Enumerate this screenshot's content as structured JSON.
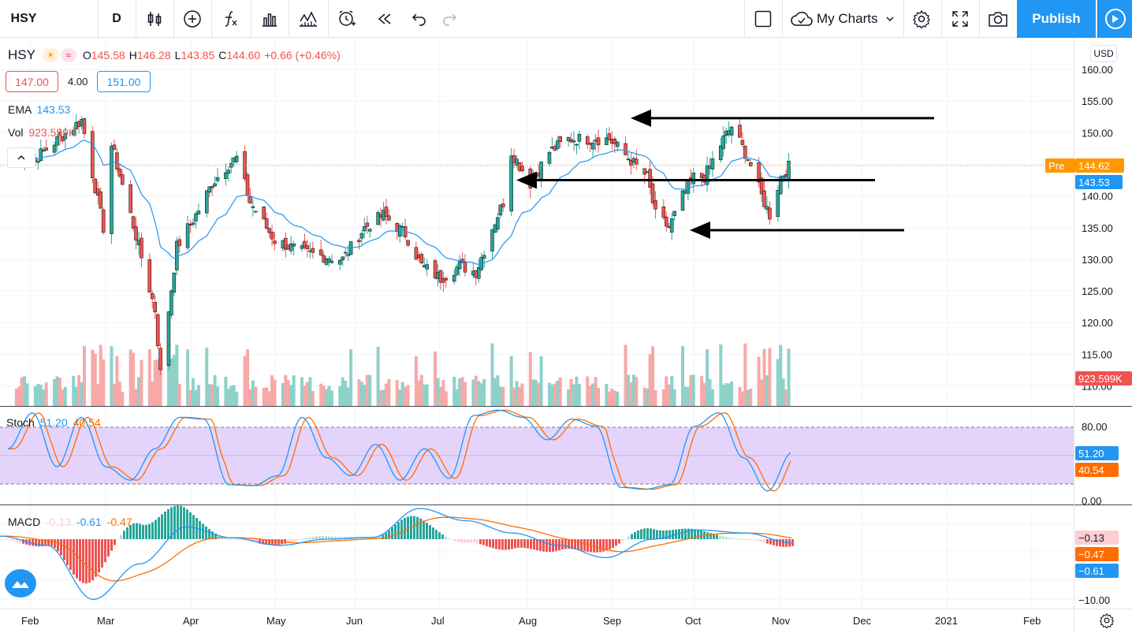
{
  "toolbar": {
    "symbol": "HSY",
    "interval": "D",
    "my_charts": "My Charts",
    "publish": "Publish"
  },
  "legend": {
    "symbol": "HSY",
    "open_label": "O",
    "open": "145.58",
    "high_label": "H",
    "high": "146.28",
    "low_label": "L",
    "low": "143.85",
    "close_label": "C",
    "close": "144.60",
    "change": "+0.66 (+0.46%)",
    "sell_price": "147.00",
    "spread": "4.00",
    "buy_price": "151.00",
    "ema_label": "EMA",
    "ema_value": "143.53",
    "vol_label": "Vol",
    "vol_value": "923.599K"
  },
  "stoch": {
    "label": "Stoch",
    "k": "51.20",
    "d": "40.54"
  },
  "macd": {
    "label": "MACD",
    "hist": "-0.13",
    "macd": "-0.61",
    "signal": "-0.47"
  },
  "price_axis": {
    "currency": "USD",
    "labels": [
      "160.00",
      "155.00",
      "150.00",
      "145.00",
      "140.00",
      "135.00",
      "130.00",
      "125.00",
      "120.00",
      "115.00",
      "110.00"
    ],
    "pre_label": "Pre",
    "pre_value": "144.62",
    "ema_value": "143.53",
    "vol_value": "923.599K"
  },
  "stoch_axis": {
    "labels": [
      "80.00",
      "0.00"
    ],
    "k_value": "51.20",
    "d_value": "40.54"
  },
  "macd_axis": {
    "labels": [
      "−10.00"
    ],
    "hist_value": "−0.13",
    "signal_value": "−0.47",
    "macd_value": "−0.61"
  },
  "time_axis": [
    "Feb",
    "Mar",
    "Apr",
    "May",
    "Jun",
    "Jul",
    "Aug",
    "Sep",
    "Oct",
    "Nov",
    "Dec",
    "2021",
    "Feb"
  ],
  "chart_data": {
    "type": "candlestick",
    "symbol": "HSY",
    "interval": "D",
    "price_range": [
      108,
      163
    ],
    "points": [
      [
        "2020-02-03",
        146
      ],
      [
        "2020-02-20",
        152
      ],
      [
        "2020-02-28",
        135
      ],
      [
        "2020-03-02",
        148
      ],
      [
        "2020-03-09",
        137
      ],
      [
        "2020-03-18",
        122
      ],
      [
        "2020-03-20",
        112
      ],
      [
        "2020-03-26",
        132
      ],
      [
        "2020-04-02",
        137
      ],
      [
        "2020-04-08",
        142
      ],
      [
        "2020-04-14",
        145
      ],
      [
        "2020-04-17",
        146
      ],
      [
        "2020-04-22",
        139
      ],
      [
        "2020-05-01",
        133
      ],
      [
        "2020-05-12",
        131
      ],
      [
        "2020-05-26",
        130
      ],
      [
        "2020-06-03",
        135
      ],
      [
        "2020-06-10",
        137
      ],
      [
        "2020-06-18",
        134
      ],
      [
        "2020-06-24",
        129
      ],
      [
        "2020-07-01",
        127
      ],
      [
        "2020-07-08",
        129
      ],
      [
        "2020-07-14",
        128
      ],
      [
        "2020-07-20",
        135
      ],
      [
        "2020-07-24",
        139
      ],
      [
        "2020-07-27",
        147
      ],
      [
        "2020-08-03",
        142
      ],
      [
        "2020-08-10",
        147
      ],
      [
        "2020-08-17",
        149
      ],
      [
        "2020-08-25",
        149
      ],
      [
        "2020-09-01",
        149
      ],
      [
        "2020-09-08",
        146
      ],
      [
        "2020-09-15",
        143
      ],
      [
        "2020-09-18",
        137
      ],
      [
        "2020-09-23",
        135
      ],
      [
        "2020-09-28",
        140
      ],
      [
        "2020-10-02",
        143
      ],
      [
        "2020-10-06",
        143
      ],
      [
        "2020-10-13",
        149
      ],
      [
        "2020-10-16",
        151
      ],
      [
        "2020-10-22",
        146
      ],
      [
        "2020-10-27",
        140
      ],
      [
        "2020-10-30",
        137
      ],
      [
        "2020-11-03",
        143
      ],
      [
        "2020-11-06",
        144.6
      ]
    ],
    "ema_color": "#2196f3",
    "up_color": "#26a69a",
    "down_color": "#ef5350",
    "annotations": [
      {
        "type": "arrow",
        "direction": "left",
        "price": 152.3
      },
      {
        "type": "arrow",
        "direction": "left",
        "price": 142.5
      },
      {
        "type": "arrow",
        "direction": "left",
        "price": 134.6
      }
    ],
    "stoch_k": [
      55,
      95,
      35,
      90,
      35,
      20,
      55,
      90,
      88,
      15,
      14,
      25,
      90,
      45,
      25,
      60,
      20,
      55,
      22,
      92,
      98,
      90,
      65,
      88,
      80,
      12,
      10,
      15,
      80,
      95,
      45,
      8,
      51.2
    ],
    "macd_line": [
      0.5,
      -1,
      -9.8,
      -4,
      2,
      0.2,
      -1,
      0,
      0.3,
      5,
      3,
      1,
      -1,
      -3,
      0,
      1.5,
      1,
      -0.61
    ]
  }
}
